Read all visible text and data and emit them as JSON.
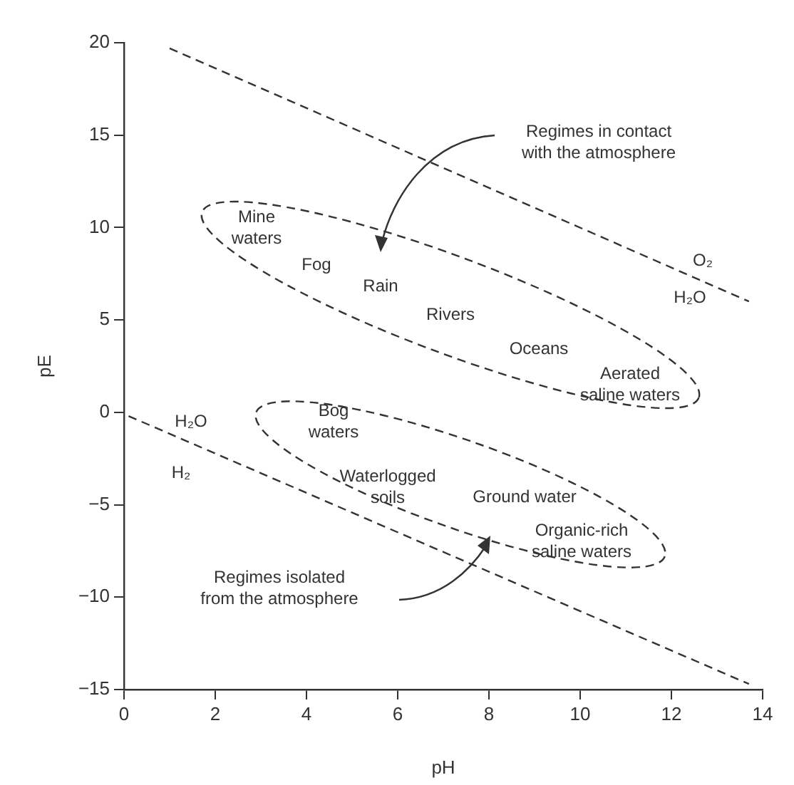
{
  "chart_data": {
    "type": "line",
    "xlabel": "pH",
    "ylabel": "pE",
    "series": [
      {
        "color": "#333333",
        "x": [
          1,
          13.7
        ],
        "values": [
          19.7,
          6
        ]
      },
      {
        "color": "#333333",
        "x": [
          0.1,
          13.7
        ],
        "values": [
          -0.2,
          -14.7
        ]
      }
    ],
    "xlim": [
      0,
      14
    ],
    "xticks": [
      0,
      2,
      4,
      6,
      8,
      10,
      12,
      14
    ],
    "ylim": [
      -15,
      20
    ],
    "yticks": [
      20,
      15,
      10,
      5,
      0,
      {
        "value": -5,
        "label": "−5"
      },
      {
        "value": -10,
        "label": "−10"
      },
      {
        "value": -15,
        "label": "−15"
      }
    ],
    "grid": false,
    "legend": false,
    "marker": "none",
    "line_style": "dashed",
    "annotations": [
      "Regimes in contact\nwith the atmosphere",
      "Mine\nwaters",
      "Fog",
      "Rain",
      "Rivers",
      "Oceans",
      "Aerated\nsaline waters",
      "O₂",
      "H₂O",
      "H₂O",
      "H₂",
      "Bog\nwaters",
      "Waterlogged\nsoils",
      "Ground water",
      "Organic-rich\nsaline waters",
      "Regimes isolated\nfrom the atmosphere"
    ]
  }
}
